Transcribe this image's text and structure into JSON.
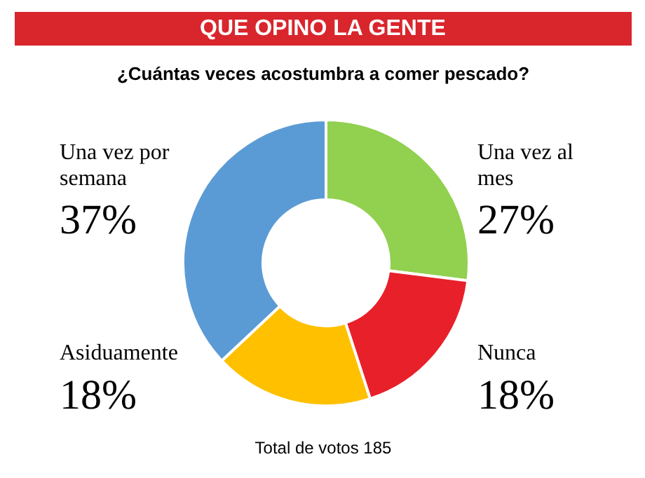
{
  "chart_data": {
    "type": "donut",
    "title": "QUE OPINO LA GENTE",
    "subtitle": "¿Cuántas veces acostumbra a comer pescado?",
    "categories": [
      "Una vez al mes",
      "Nunca",
      "Asiduamente",
      "Una vez por semana"
    ],
    "values": [
      27,
      18,
      18,
      37
    ],
    "colors": [
      "#92d050",
      "#e8202a",
      "#ffc000",
      "#5b9bd5"
    ],
    "value_labels": [
      "27%",
      "18%",
      "18%",
      "37%"
    ],
    "annotations": [
      "Total de votos 185"
    ]
  }
}
